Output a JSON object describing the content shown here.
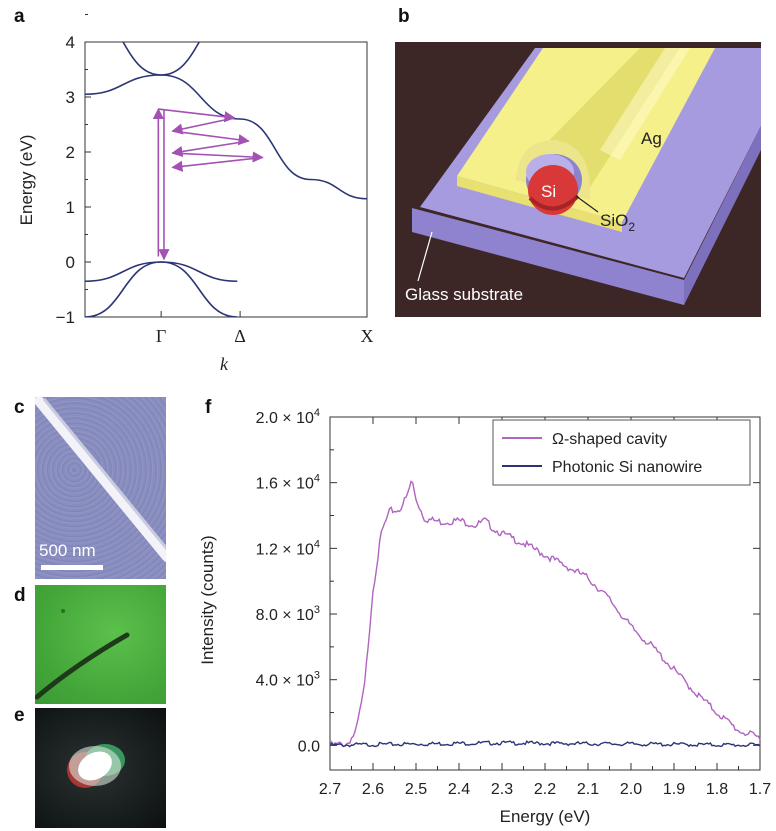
{
  "panels": {
    "a": "a",
    "b": "b",
    "c": "c",
    "d": "d",
    "e": "e",
    "f": "f"
  },
  "colors": {
    "band": "#2b3575",
    "arrow": "#a352b4",
    "omega": "#b064c0",
    "photonic": "#2b3575",
    "ag": "#f5f08a",
    "substrate": "#9a8ed6",
    "si": "#d83838",
    "bg_b": "#3c2626",
    "sem_bg": "#8a8fbf",
    "optical_bg": "#4aae3e"
  },
  "schematic": {
    "ag_label": "Ag",
    "si_label": "Si",
    "sio2_label": "SiO",
    "sio2_sub": "2",
    "substrate_label": "Glass substrate"
  },
  "sem": {
    "scalebar_label": "500 nm"
  },
  "chart_data": [
    {
      "type": "line",
      "panel": "a",
      "xlabel": "k",
      "ylabel": "Energy (eV)",
      "ylim": [
        -1,
        4
      ],
      "yticks": [
        "4",
        "3",
        "2",
        "1",
        "0",
        "−1"
      ],
      "xticks": [
        "Γ",
        "Δ",
        "X"
      ],
      "series": [
        {
          "values": [
            [
              0.0,
              4.6
            ],
            [
              0.27,
              3.4
            ],
            [
              0.54,
              4.6
            ]
          ]
        },
        {
          "values": [
            [
              0.0,
              3.05
            ],
            [
              0.27,
              3.4
            ],
            [
              0.55,
              2.6
            ],
            [
              0.8,
              1.5
            ],
            [
              1.0,
              1.15
            ]
          ]
        },
        {
          "values": [
            [
              0.0,
              -0.35
            ],
            [
              0.27,
              0.0
            ],
            [
              0.54,
              -0.35
            ]
          ]
        },
        {
          "values": [
            [
              0.0,
              -1.0
            ],
            [
              0.27,
              0.0
            ],
            [
              0.54,
              -1.0
            ]
          ]
        }
      ],
      "arrows": [
        {
          "from": [
            0.26,
            0.1
          ],
          "to": [
            0.26,
            2.78
          ]
        },
        {
          "from": [
            0.26,
            2.78
          ],
          "to": [
            0.53,
            2.62
          ]
        },
        {
          "from": [
            0.53,
            2.62
          ],
          "to": [
            0.31,
            2.38
          ]
        },
        {
          "from": [
            0.31,
            2.38
          ],
          "to": [
            0.58,
            2.2
          ]
        },
        {
          "from": [
            0.58,
            2.2
          ],
          "to": [
            0.31,
            1.98
          ]
        },
        {
          "from": [
            0.31,
            1.98
          ],
          "to": [
            0.63,
            1.9
          ]
        },
        {
          "from": [
            0.63,
            1.9
          ],
          "to": [
            0.31,
            1.72
          ]
        },
        {
          "from": [
            0.28,
            2.78
          ],
          "to": [
            0.28,
            0.05
          ]
        }
      ]
    },
    {
      "type": "line",
      "panel": "f",
      "xlabel": "Energy (eV)",
      "ylabel": "Intensity (counts)",
      "xlim": [
        2.7,
        1.7
      ],
      "ylim": [
        -1500,
        20000
      ],
      "xticks": [
        "2.7",
        "2.6",
        "2.5",
        "2.4",
        "2.3",
        "2.2",
        "2.1",
        "2.0",
        "1.9",
        "1.8",
        "1.7"
      ],
      "yticks": [
        {
          "mant": "2.0 × 10",
          "exp": "4"
        },
        {
          "mant": "1.6 × 10",
          "exp": "4"
        },
        {
          "mant": "1.2 × 10",
          "exp": "4"
        },
        {
          "mant": "8.0 × 10",
          "exp": "3"
        },
        {
          "mant": "4.0 × 10",
          "exp": "3"
        },
        {
          "mant": "0.0",
          "exp": ""
        }
      ],
      "ytick_values": [
        20000,
        16000,
        12000,
        8000,
        4000,
        0
      ],
      "legend_position": "top-right",
      "series": [
        {
          "name": "Ω-shaped cavity",
          "x": [
            2.7,
            2.66,
            2.64,
            2.62,
            2.6,
            2.58,
            2.56,
            2.54,
            2.52,
            2.51,
            2.5,
            2.48,
            2.44,
            2.4,
            2.36,
            2.34,
            2.32,
            2.3,
            2.25,
            2.2,
            2.15,
            2.1,
            2.05,
            2.0,
            1.95,
            1.9,
            1.85,
            1.8,
            1.75,
            1.7
          ],
          "y": [
            0,
            100,
            800,
            3500,
            9500,
            13000,
            14300,
            14300,
            15200,
            16200,
            15000,
            13800,
            13600,
            13700,
            13400,
            13700,
            13200,
            12900,
            12300,
            11600,
            10900,
            10200,
            8900,
            7200,
            6000,
            4600,
            3200,
            2000,
            900,
            450
          ]
        },
        {
          "name": "Photonic Si nanowire",
          "x": [
            2.7,
            2.6,
            2.5,
            2.4,
            2.3,
            2.2,
            2.1,
            2.0,
            1.9,
            1.8,
            1.7
          ],
          "y": [
            0,
            50,
            80,
            120,
            150,
            120,
            100,
            80,
            60,
            30,
            10
          ]
        }
      ]
    }
  ]
}
